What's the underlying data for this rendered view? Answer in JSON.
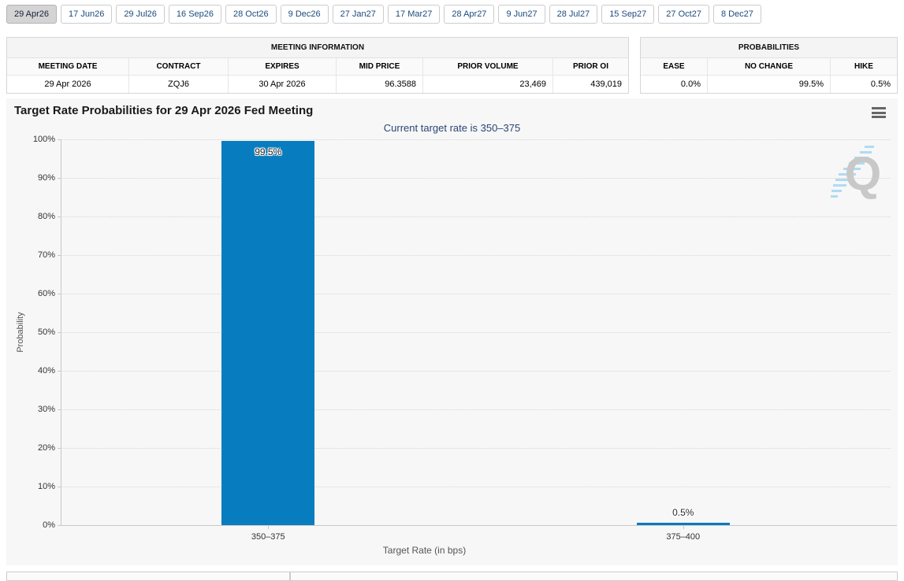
{
  "tabs": [
    {
      "label": "29 Apr26",
      "selected": true
    },
    {
      "label": "17 Jun26",
      "selected": false
    },
    {
      "label": "29 Jul26",
      "selected": false
    },
    {
      "label": "16 Sep26",
      "selected": false
    },
    {
      "label": "28 Oct26",
      "selected": false
    },
    {
      "label": "9 Dec26",
      "selected": false
    },
    {
      "label": "27 Jan27",
      "selected": false
    },
    {
      "label": "17 Mar27",
      "selected": false
    },
    {
      "label": "28 Apr27",
      "selected": false
    },
    {
      "label": "9 Jun27",
      "selected": false
    },
    {
      "label": "28 Jul27",
      "selected": false
    },
    {
      "label": "15 Sep27",
      "selected": false
    },
    {
      "label": "27 Oct27",
      "selected": false
    },
    {
      "label": "8 Dec27",
      "selected": false
    }
  ],
  "meeting_table": {
    "title": "MEETING INFORMATION",
    "columns": [
      "MEETING DATE",
      "CONTRACT",
      "EXPIRES",
      "MID PRICE",
      "PRIOR VOLUME",
      "PRIOR OI"
    ],
    "row": [
      "29 Apr 2026",
      "ZQJ6",
      "30 Apr 2026",
      "96.3588",
      "23,469",
      "439,019"
    ]
  },
  "probabilities_table": {
    "title": "PROBABILITIES",
    "columns": [
      "EASE",
      "NO CHANGE",
      "HIKE"
    ],
    "row": [
      "0.0%",
      "99.5%",
      "0.5%"
    ]
  },
  "chart_data": {
    "type": "bar",
    "title": "Target Rate Probabilities for 29 Apr 2026 Fed Meeting",
    "subtitle": "Current target rate is 350–375",
    "categories": [
      "350–375",
      "375–400"
    ],
    "values": [
      99.5,
      0.5
    ],
    "value_labels": [
      "99.5%",
      "0.5%"
    ],
    "xlabel": "Target Rate (in bps)",
    "ylabel": "Probability",
    "ylim": [
      0,
      100
    ],
    "ytick_step": 10,
    "ytick_suffix": "%",
    "bar_color": "#077cbe",
    "grid": "horizontal-dotted",
    "legend": "none"
  },
  "watermark": {
    "letter": "Q"
  },
  "icons": {
    "menu": "hamburger-menu-icon"
  }
}
